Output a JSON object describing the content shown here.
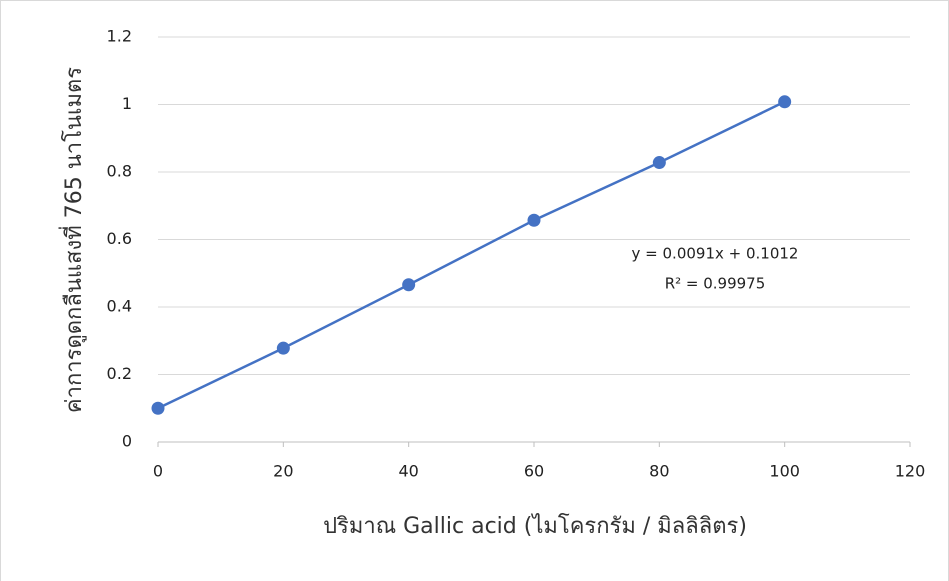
{
  "chart_data": {
    "type": "scatter",
    "x_label": "ปริมาณ Gallic acid (ไมโครกรัม / มิลลิลิตร)",
    "y_label": "ค่าการดูดกลืนแสงที่ 765 นาโนเมตร",
    "annotations": [
      "y = 0.0091x + 0.1012",
      "R² = 0.99975"
    ],
    "x": [
      0,
      20,
      40,
      60,
      80,
      100
    ],
    "series": [
      {
        "color": "#4472c4",
        "values": [
          0.1,
          0.278,
          0.466,
          0.657,
          0.828,
          1.008
        ]
      }
    ],
    "xlim": [
      0,
      120
    ],
    "xticks": [
      0,
      20,
      40,
      60,
      80,
      100,
      120
    ],
    "ylim": [
      0,
      1.2
    ],
    "yticks": [
      0,
      0.2,
      0.4,
      0.6,
      0.8,
      1,
      1.2
    ],
    "grid": true
  }
}
